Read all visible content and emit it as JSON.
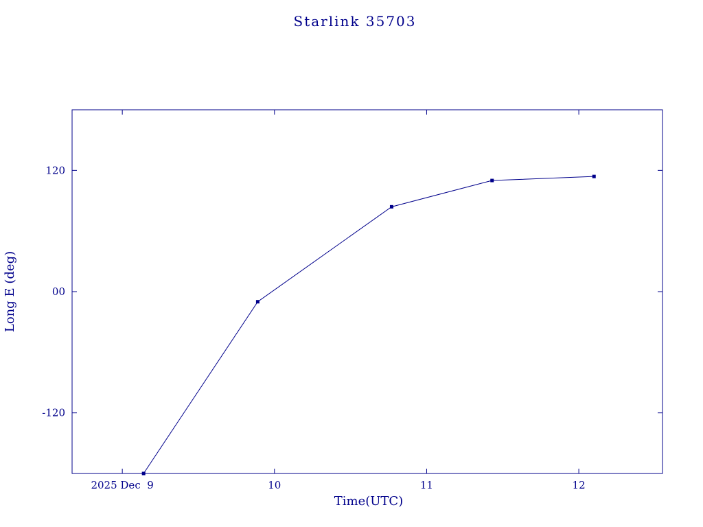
{
  "title": "Starlink 35703",
  "colors": {
    "accent": "#00008B",
    "background": "#ffffff"
  },
  "chart_data": {
    "type": "line",
    "title": "Starlink 35703",
    "xlabel": "Time(UTC)",
    "ylabel": "Long E (deg)",
    "x": [
      9.14,
      9.89,
      10.77,
      11.43,
      12.1
    ],
    "y": [
      -180,
      -10,
      84,
      110,
      114
    ],
    "xlim": [
      8.67,
      12.55
    ],
    "ylim": [
      -180,
      180
    ],
    "xticks": [
      {
        "value": 9,
        "label": "2025 Dec  9"
      },
      {
        "value": 10,
        "label": "10"
      },
      {
        "value": 11,
        "label": "11"
      },
      {
        "value": 12,
        "label": "12"
      }
    ],
    "yticks": [
      {
        "value": 120,
        "label": "120"
      },
      {
        "value": 0,
        "label": "00"
      },
      {
        "value": -120,
        "label": "-120"
      }
    ],
    "marker": "square",
    "line_color": "#00008B",
    "grid": false,
    "legend": null
  }
}
